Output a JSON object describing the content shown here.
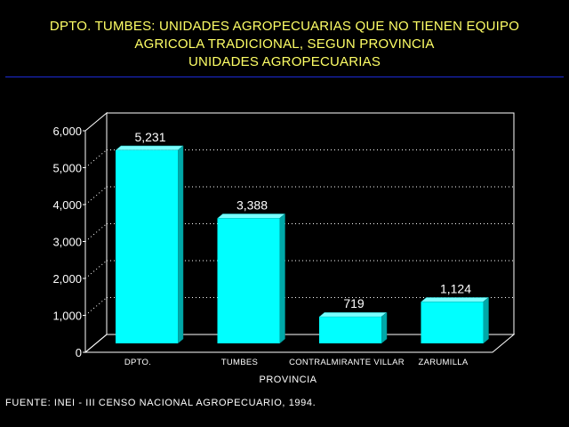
{
  "title_lines": [
    "DPTO. TUMBES: UNIDADES AGROPECUARIAS QUE NO TIENEN EQUIPO",
    "AGRICOLA TRADICIONAL, SEGUN PROVINCIA",
    "UNIDADES AGROPECUARIAS"
  ],
  "source_note": "FUENTE: INEI - III CENSO NACIONAL AGROPECUARIO, 1994.",
  "colors": {
    "background": "#000000",
    "title": "#ffff66",
    "title_rule": "#1c2bd6",
    "bar_face": "#00ffff",
    "axis_text": "#ffffff"
  },
  "chart_data": {
    "type": "bar",
    "categories": [
      "DPTO.",
      "TUMBES",
      "CONTRALMIRANTE VILLAR",
      "ZARUMILLA"
    ],
    "values": [
      5231,
      3388,
      719,
      1124
    ],
    "value_labels": [
      "5,231",
      "3,388",
      "719",
      "1,124"
    ],
    "xlabel": "PROVINCIA",
    "ylabel": "",
    "ylim": [
      0,
      6000
    ],
    "yticks": [
      0,
      1000,
      2000,
      3000,
      4000,
      5000,
      6000
    ],
    "ytick_labels": [
      "0",
      "1,000",
      "2,000",
      "3,000",
      "4,000",
      "5,000",
      "6,000"
    ],
    "grid": "horizontal-dotted",
    "legend": "none"
  }
}
